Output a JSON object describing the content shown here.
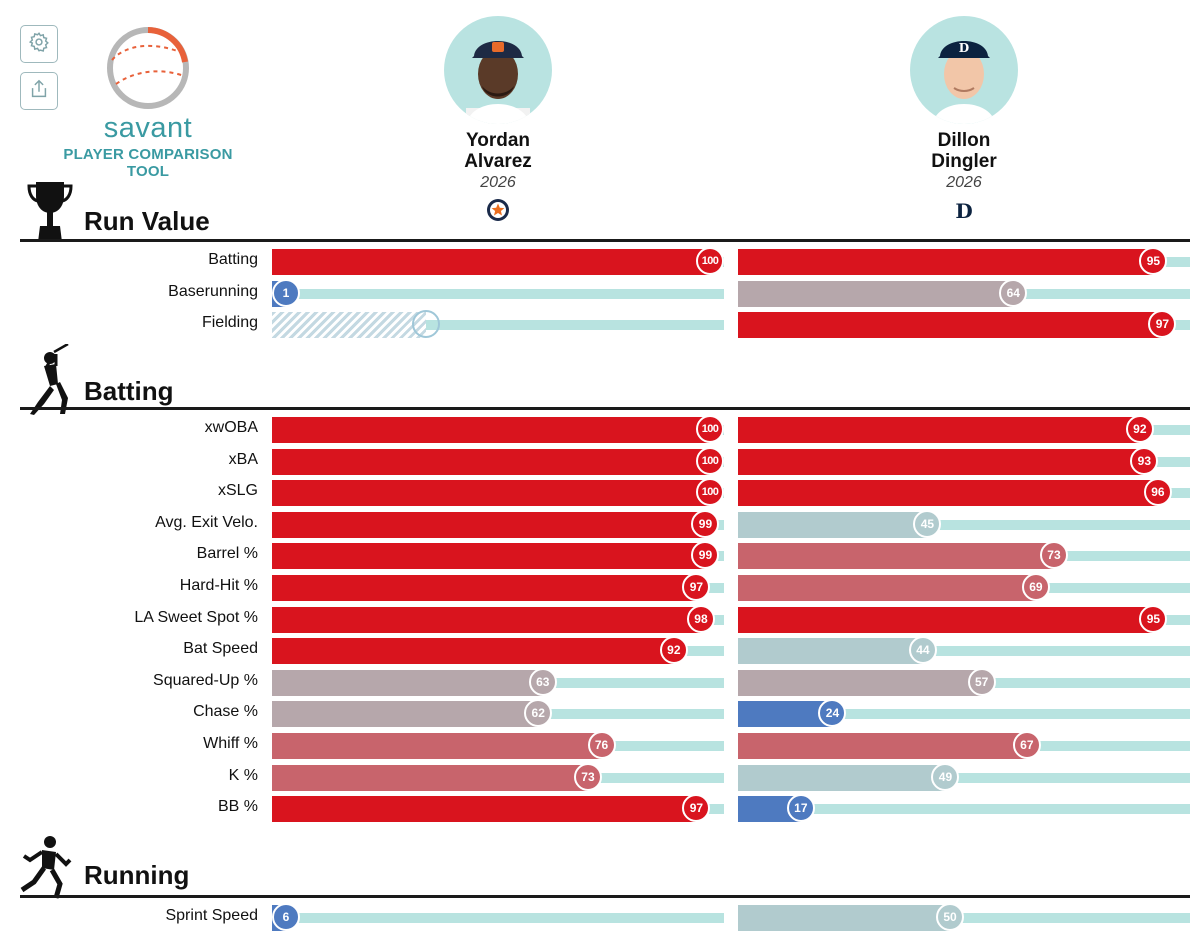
{
  "toolbar": {
    "settings_icon": "gear-icon",
    "share_icon": "share-icon"
  },
  "logo": {
    "word": "savant",
    "subtitle": "PLAYER COMPARISON TOOL"
  },
  "players": [
    {
      "first": "Yordan",
      "last": "Alvarez",
      "year": "2026",
      "team_logo": "astros-star-icon"
    },
    {
      "first": "Dillon",
      "last": "Dingler",
      "year": "2026",
      "team_logo": "tigers-d-icon"
    }
  ],
  "sections": [
    {
      "title": "Run Value",
      "icon": "trophy-icon",
      "metrics": [
        {
          "label": "Batting",
          "p1": 100,
          "p2": 95
        },
        {
          "label": "Baserunning",
          "p1": 1,
          "p2": 64
        },
        {
          "label": "Fielding",
          "p1": null,
          "p1_hatched": 0.34,
          "p2": 97
        }
      ]
    },
    {
      "title": "Batting",
      "icon": "batter-icon",
      "metrics": [
        {
          "label": "xwOBA",
          "p1": 100,
          "p2": 92
        },
        {
          "label": "xBA",
          "p1": 100,
          "p2": 93
        },
        {
          "label": "xSLG",
          "p1": 100,
          "p2": 96
        },
        {
          "label": "Avg. Exit Velo.",
          "p1": 99,
          "p2": 45
        },
        {
          "label": "Barrel %",
          "p1": 99,
          "p2": 73
        },
        {
          "label": "Hard-Hit %",
          "p1": 97,
          "p2": 69
        },
        {
          "label": "LA Sweet Spot %",
          "p1": 98,
          "p2": 95
        },
        {
          "label": "Bat Speed",
          "p1": 92,
          "p2": 44
        },
        {
          "label": "Squared-Up %",
          "p1": 63,
          "p2": 57
        },
        {
          "label": "Chase %",
          "p1": 62,
          "p2": 24
        },
        {
          "label": "Whiff %",
          "p1": 76,
          "p2": 67
        },
        {
          "label": "K %",
          "p1": 73,
          "p2": 49
        },
        {
          "label": "BB %",
          "p1": 97,
          "p2": 17
        }
      ]
    },
    {
      "title": "Running",
      "icon": "runner-icon",
      "metrics": [
        {
          "label": "Sprint Speed",
          "p1": 6,
          "p2": 50
        }
      ]
    }
  ],
  "colors": {
    "elite": "#d9141e",
    "good": "#c8646c",
    "average": "#b6a7ab",
    "below": "#b1cbce",
    "poor": "#4e7ac0",
    "track": "#b8e3e0",
    "accent": "#3a9aa2"
  }
}
